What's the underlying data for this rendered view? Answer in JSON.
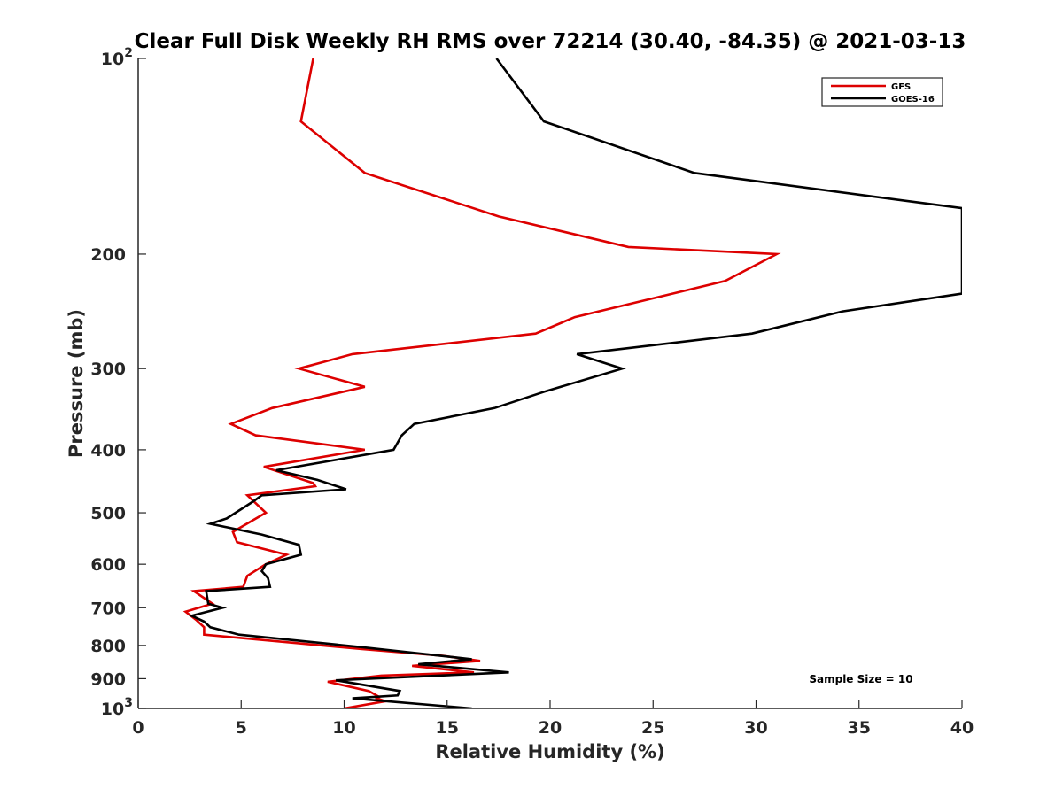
{
  "chart_data": {
    "type": "line",
    "title": "Clear Full Disk Weekly RH RMS over 72214 (30.40, -84.35) @ 2021-03-13",
    "xlabel": "Relative Humidity (%)",
    "ylabel": "Pressure (mb)",
    "xlim": [
      0,
      40
    ],
    "ylim": [
      100,
      1000
    ],
    "yscale": "log",
    "yreversed": true,
    "x_ticks": [
      "0",
      "5",
      "10",
      "15",
      "20",
      "25",
      "30",
      "35",
      "40"
    ],
    "y_ticks": [
      {
        "p": 100,
        "base": "10",
        "exp": "2"
      },
      {
        "p": 200,
        "label": "200"
      },
      {
        "p": 300,
        "label": "300"
      },
      {
        "p": 400,
        "label": "400"
      },
      {
        "p": 500,
        "label": "500"
      },
      {
        "p": 600,
        "label": "600"
      },
      {
        "p": 700,
        "label": "700"
      },
      {
        "p": 800,
        "label": "800"
      },
      {
        "p": 900,
        "label": "900"
      },
      {
        "p": 1000,
        "base": "10",
        "exp": "3"
      }
    ],
    "legend_position": "top-right",
    "annotation": "Sample Size = 10",
    "series": [
      {
        "name": "GFS",
        "color": "#dd0000",
        "points": [
          [
            8.5,
            100
          ],
          [
            7.9,
            125
          ],
          [
            11.0,
            150
          ],
          [
            17.5,
            175
          ],
          [
            23.8,
            195
          ],
          [
            31.0,
            200
          ],
          [
            28.5,
            220
          ],
          [
            21.2,
            250
          ],
          [
            19.3,
            265
          ],
          [
            10.4,
            285
          ],
          [
            7.8,
            300
          ],
          [
            11.0,
            320
          ],
          [
            6.5,
            345
          ],
          [
            4.5,
            365
          ],
          [
            5.7,
            380
          ],
          [
            11.0,
            400
          ],
          [
            6.1,
            425
          ],
          [
            8.5,
            450
          ],
          [
            8.6,
            455
          ],
          [
            5.3,
            470
          ],
          [
            6.2,
            500
          ],
          [
            4.6,
            535
          ],
          [
            4.8,
            555
          ],
          [
            7.2,
            580
          ],
          [
            6.2,
            600
          ],
          [
            5.3,
            625
          ],
          [
            5.1,
            650
          ],
          [
            2.7,
            660
          ],
          [
            3.6,
            690
          ],
          [
            2.3,
            710
          ],
          [
            2.8,
            730
          ],
          [
            3.2,
            750
          ],
          [
            3.2,
            770
          ],
          [
            10.8,
            810
          ],
          [
            14.8,
            830
          ],
          [
            16.6,
            845
          ],
          [
            13.3,
            860
          ],
          [
            16.3,
            880
          ],
          [
            11.8,
            890
          ],
          [
            9.2,
            910
          ],
          [
            11.2,
            940
          ],
          [
            11.7,
            960
          ],
          [
            11.6,
            965
          ],
          [
            12.0,
            975
          ],
          [
            10.0,
            1000
          ]
        ]
      },
      {
        "name": "GOES-16",
        "color": "#000000",
        "points": [
          [
            17.4,
            100
          ],
          [
            19.7,
            125
          ],
          [
            27.0,
            150
          ],
          [
            40.0,
            170
          ],
          [
            40.0,
            230
          ],
          [
            34.2,
            245
          ],
          [
            29.8,
            265
          ],
          [
            21.3,
            285
          ],
          [
            23.5,
            300
          ],
          [
            19.8,
            325
          ],
          [
            17.3,
            345
          ],
          [
            13.4,
            365
          ],
          [
            12.8,
            380
          ],
          [
            12.4,
            400
          ],
          [
            6.7,
            430
          ],
          [
            8.7,
            445
          ],
          [
            10.1,
            460
          ],
          [
            6.0,
            470
          ],
          [
            5.6,
            480
          ],
          [
            4.3,
            510
          ],
          [
            3.5,
            520
          ],
          [
            6.0,
            540
          ],
          [
            7.8,
            560
          ],
          [
            7.9,
            580
          ],
          [
            6.2,
            600
          ],
          [
            6.0,
            615
          ],
          [
            6.3,
            630
          ],
          [
            6.4,
            650
          ],
          [
            3.3,
            660
          ],
          [
            3.4,
            690
          ],
          [
            4.1,
            700
          ],
          [
            2.6,
            720
          ],
          [
            3.2,
            735
          ],
          [
            3.5,
            750
          ],
          [
            4.9,
            770
          ],
          [
            10.9,
            805
          ],
          [
            16.2,
            840
          ],
          [
            13.6,
            855
          ],
          [
            18.0,
            880
          ],
          [
            9.6,
            905
          ],
          [
            12.7,
            940
          ],
          [
            12.6,
            955
          ],
          [
            10.4,
            965
          ],
          [
            12.1,
            975
          ],
          [
            16.2,
            1000
          ]
        ]
      }
    ]
  }
}
